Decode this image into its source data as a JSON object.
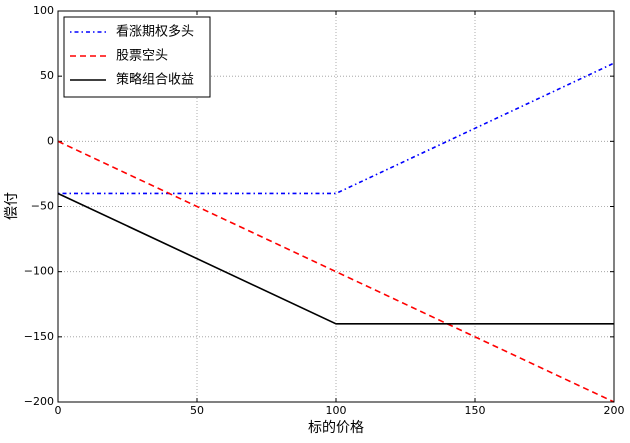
{
  "chart_data": {
    "type": "line",
    "xlabel": "标的价格",
    "ylabel": "偿付",
    "x": [
      0,
      100,
      200
    ],
    "series": [
      {
        "name": "看涨期权多头",
        "color": "#0000ff",
        "dash": "dashdot",
        "values": [
          -40,
          -40,
          60
        ]
      },
      {
        "name": "股票空头",
        "color": "#ff0000",
        "dash": "dashed",
        "values": [
          0,
          -100,
          -200
        ]
      },
      {
        "name": "策略组合收益",
        "color": "#000000",
        "dash": "solid",
        "values": [
          -40,
          -140,
          -140
        ]
      }
    ],
    "xlim": [
      0,
      200
    ],
    "xticks": [
      0,
      50,
      100,
      150,
      200
    ],
    "ylim": [
      -200,
      100
    ],
    "yticks": [
      {
        "value": -200,
        "label": "−200"
      },
      {
        "value": -150,
        "label": "−150"
      },
      {
        "value": -100,
        "label": "−100"
      },
      {
        "value": -50,
        "label": "−50"
      },
      0,
      50,
      100
    ],
    "grid": true,
    "legend": "upper left"
  }
}
